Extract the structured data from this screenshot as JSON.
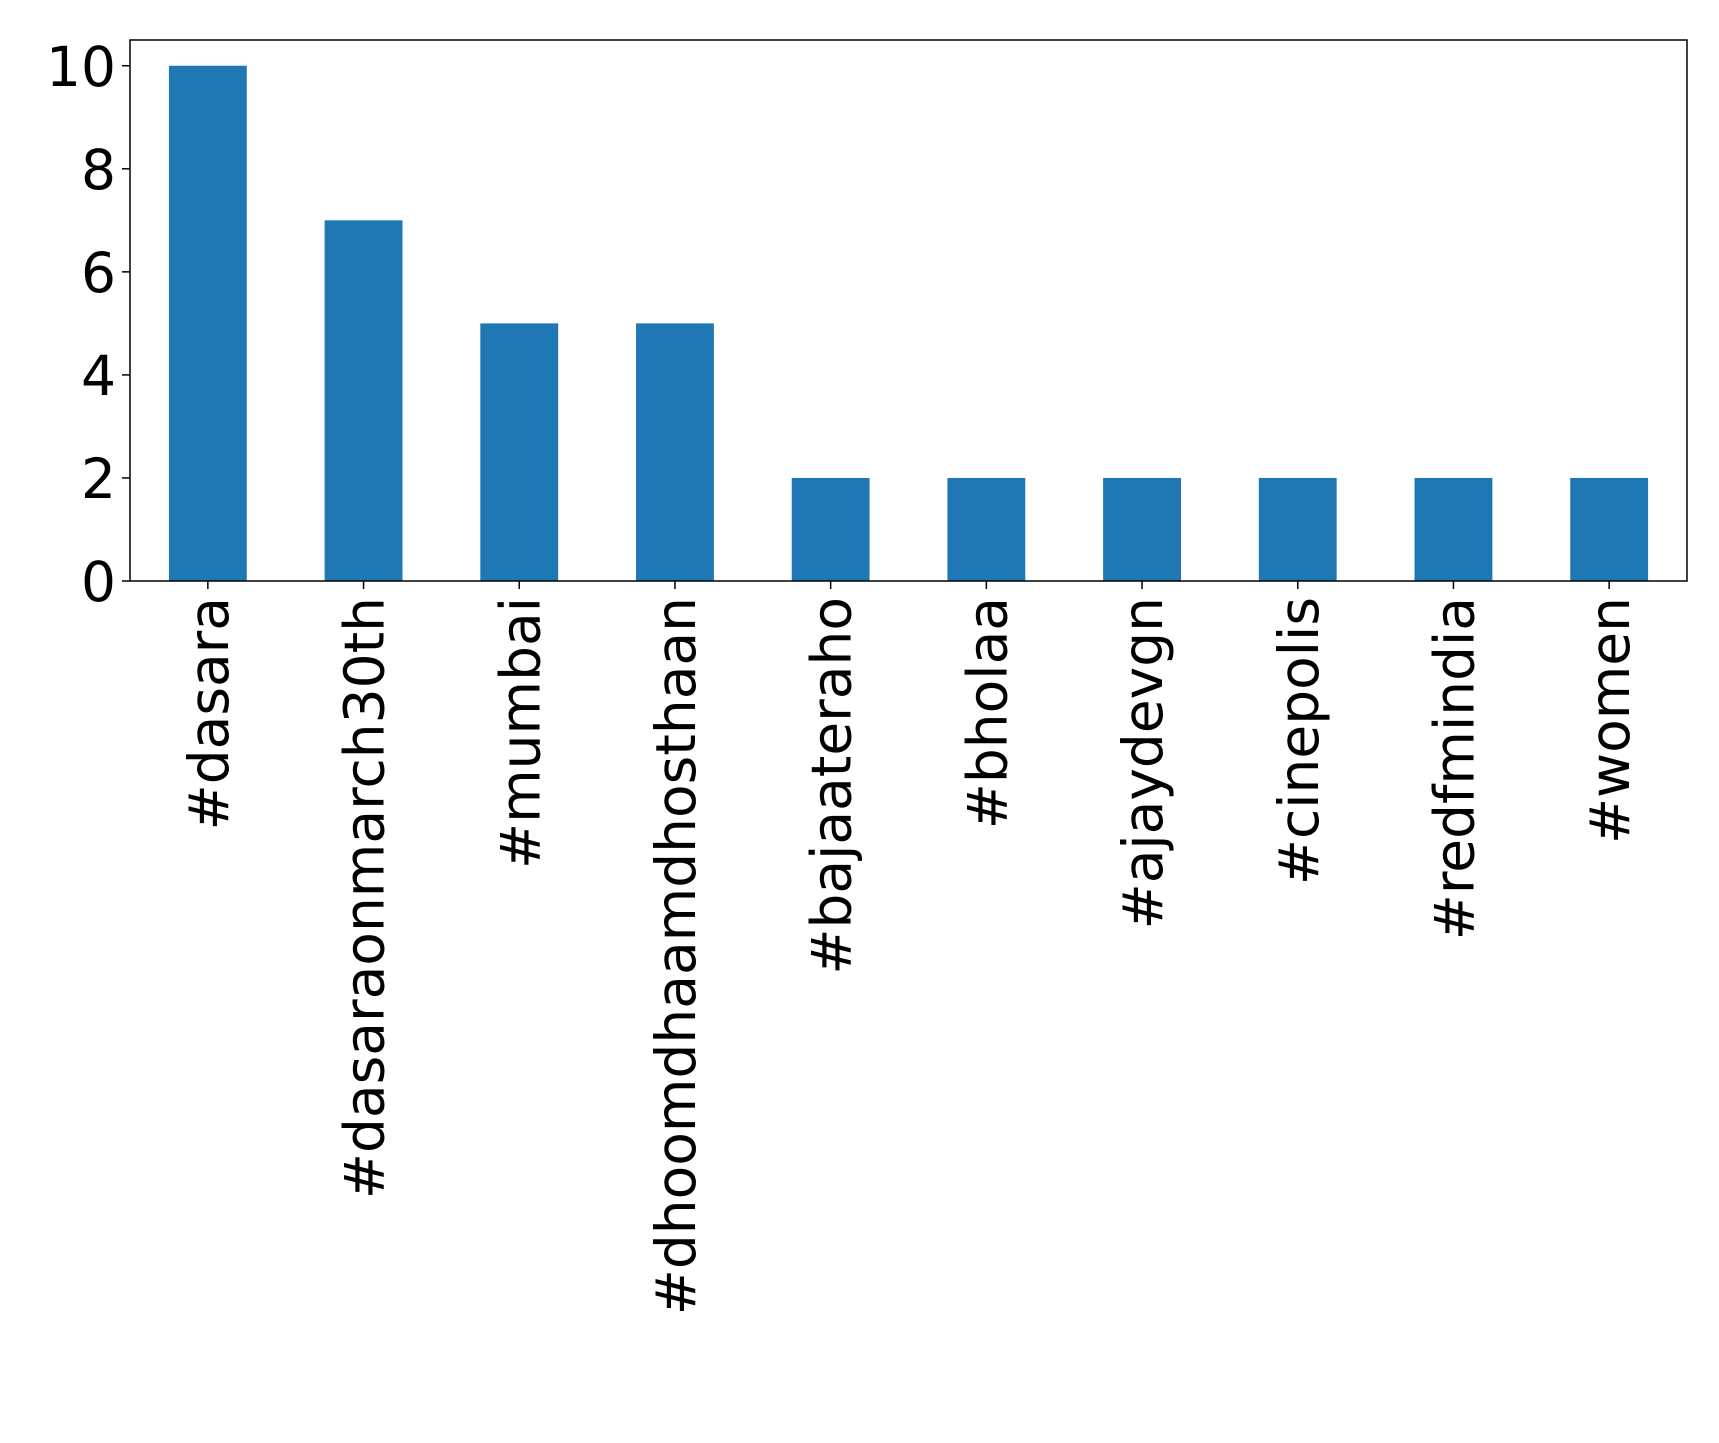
{
  "chart_data": {
    "type": "bar",
    "categories": [
      "#dasara",
      "#dasaraonmarch30th",
      "#mumbai",
      "#dhoomdhaamdhosthaan",
      "#bajaateraho",
      "#bholaa",
      "#ajaydevgn",
      "#cinepolis",
      "#redfmindia",
      "#women"
    ],
    "values": [
      10,
      7,
      5,
      5,
      2,
      2,
      2,
      2,
      2,
      2
    ],
    "color": "#1f77b4",
    "ylim": [
      0,
      10.5
    ],
    "yticks": [
      0,
      2,
      4,
      6,
      8,
      10
    ],
    "grid": false
  }
}
